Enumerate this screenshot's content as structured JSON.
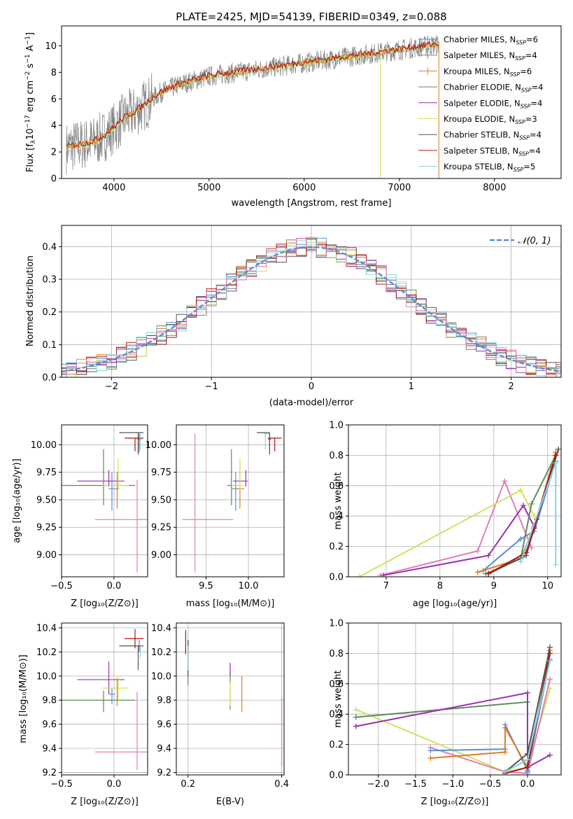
{
  "figure": {
    "title": "PLATE=2425, MJD=54139, FIBERID=0349, z=0.088"
  },
  "colors": {
    "chabrier_miles": "#5b8fd6",
    "salpeter_miles": "#7a7a7a",
    "kroupa_miles": "#e07b20",
    "chabrier_elodie": "#5e8a5e",
    "salpeter_elodie": "#9a2fb0",
    "kroupa_elodie": "#cfe35a",
    "chabrier_stelib": "#555555",
    "salpeter_stelib": "#b01515",
    "kroupa_stelib": "#80d8dc",
    "pink": "#e07fb8",
    "normal": "#5b8fd6"
  },
  "legend_models": [
    {
      "label": "Chabrier MILES, N",
      "sub": "SSP",
      "tail": "=6",
      "color": "#5b8fd6",
      "marker": "plus"
    },
    {
      "label": "Salpeter MILES, N",
      "sub": "SSP",
      "tail": "=4",
      "color": "#7a7a7a",
      "marker": "plus"
    },
    {
      "label": "Kroupa MILES, N",
      "sub": "SSP",
      "tail": "=6",
      "color": "#e07b20",
      "marker": "plus"
    },
    {
      "label": "Chabrier ELODIE, N",
      "sub": "SSP",
      "tail": "=4",
      "color": "#5e8a5e",
      "marker": "line"
    },
    {
      "label": "Salpeter ELODIE, N",
      "sub": "SSP",
      "tail": "=4",
      "color": "#9a2fb0",
      "marker": "line"
    },
    {
      "label": "Kroupa ELODIE, N",
      "sub": "SSP",
      "tail": "=3",
      "color": "#cfe35a",
      "marker": "line"
    },
    {
      "label": "Chabrier STELIB, N",
      "sub": "SSP",
      "tail": "=4",
      "color": "#555555",
      "marker": "line"
    },
    {
      "label": "Salpeter STELIB, N",
      "sub": "SSP",
      "tail": "=4",
      "color": "#b01515",
      "marker": "line"
    },
    {
      "label": "Kroupa STELIB, N",
      "sub": "SSP",
      "tail": "=5",
      "color": "#80d8dc",
      "marker": "line"
    }
  ],
  "chart_data": [
    {
      "id": "spectrum",
      "type": "line",
      "xlabel": "wavelength [Angstrom, rest frame]",
      "ylabel": "Flux [fλ10⁻¹⁷ erg cm⁻² s⁻¹ A⁻¹]",
      "xlim": [
        3450,
        8700
      ],
      "ylim": [
        0,
        11.5
      ],
      "xticks": [
        4000,
        5000,
        6000,
        7000,
        8000
      ],
      "yticks": [
        0,
        2,
        4,
        6,
        8,
        10
      ],
      "data_trend": {
        "x": [
          3500,
          3600,
          3700,
          3800,
          3900,
          4000,
          4100,
          4200,
          4300,
          4400,
          4500,
          4600,
          4700,
          4800,
          4900,
          5000,
          5200,
          5400,
          5600,
          5800,
          6000,
          6200,
          6400,
          6600,
          6800,
          7000,
          7200,
          7400
        ],
        "y": [
          2.3,
          2.5,
          2.6,
          2.8,
          3.2,
          3.8,
          4.5,
          4.9,
          5.4,
          6.0,
          6.5,
          6.8,
          7.1,
          7.3,
          7.5,
          7.7,
          7.9,
          8.1,
          8.3,
          8.5,
          8.7,
          8.9,
          9.1,
          9.3,
          9.5,
          9.7,
          9.9,
          10.1
        ]
      }
    },
    {
      "id": "residuals",
      "type": "line",
      "xlabel": "(data-model)/error",
      "ylabel": "Normed distribution",
      "xlim": [
        -2.5,
        2.5
      ],
      "ylim": [
        0,
        0.465
      ],
      "xticks": [
        -2,
        -1,
        0,
        1,
        2
      ],
      "yticks": [
        0.0,
        0.1,
        0.2,
        0.3,
        0.4
      ],
      "series": [
        {
          "name": "𝒩(0, 1)",
          "function": "normal",
          "mu": 0,
          "sigma": 1
        }
      ]
    },
    {
      "id": "age_vs_Z",
      "type": "scatter",
      "xlabel": "Z [log₁₀(Z/Z⊙)]",
      "ylabel": "age  [log₁₀(age/yr)]",
      "xlim": [
        -0.5,
        0.32
      ],
      "ylim": [
        8.8,
        10.18
      ],
      "xticks": [
        -0.5,
        0.0
      ],
      "yticks": [
        9.0,
        9.25,
        9.5,
        9.75,
        10.0
      ],
      "points": [
        {
          "x": -0.02,
          "y": 9.6,
          "xerr": [
            0.03,
            0.03
          ],
          "yerr": [
            0.2,
            0.15
          ],
          "color": "#5b8fd6"
        },
        {
          "x": 0.24,
          "y": 10.05,
          "xerr": [
            0.02,
            0.02
          ],
          "yerr": [
            0.12,
            0.05
          ],
          "color": "#7a7a7a"
        },
        {
          "x": 0.03,
          "y": 9.6,
          "xerr": [
            0.02,
            0.02
          ],
          "yerr": [
            0.18,
            0.15
          ],
          "color": "#e07b20"
        },
        {
          "x": -0.1,
          "y": 9.63,
          "xerr": [
            0.4,
            0.3
          ],
          "yerr": [
            0.18,
            0.33
          ],
          "color": "#5e8a5e"
        },
        {
          "x": -0.05,
          "y": 9.67,
          "xerr": [
            0.3,
            0.15
          ],
          "yerr": [
            0.05,
            0.1
          ],
          "color": "#9a2fb0"
        },
        {
          "x": 0.04,
          "y": 9.63,
          "xerr": [
            0.15,
            0.1
          ],
          "yerr": [
            0.04,
            0.25
          ],
          "color": "#cfe35a"
        },
        {
          "x": 0.23,
          "y": 10.11,
          "xerr": [
            0.18,
            0.05
          ],
          "yerr": [
            0.2,
            0.0
          ],
          "color": "#555555"
        },
        {
          "x": 0.2,
          "y": 10.06,
          "xerr": [
            0.1,
            0.08
          ],
          "yerr": [
            0.12,
            0.0
          ],
          "color": "#b01515"
        },
        {
          "x": 0.25,
          "y": 10.1,
          "xerr": [
            0.01,
            0.0
          ],
          "yerr": [
            0.14,
            0.0
          ],
          "color": "#80d8dc"
        },
        {
          "x": 0.22,
          "y": 9.32,
          "xerr": [
            0.4,
            0.1
          ],
          "yerr": [
            0.48,
            0.36
          ],
          "color": "#e07fb8"
        }
      ]
    },
    {
      "id": "age_vs_mass",
      "type": "scatter",
      "xlabel": "mass [log₁₀(M/M⊙)]",
      "ylabel": "",
      "xlim": [
        9.15,
        10.42
      ],
      "ylim": [
        8.8,
        10.18
      ],
      "xticks": [
        9.5,
        10.0
      ],
      "yticks": [
        9.0,
        9.25,
        9.5,
        9.75,
        10.0
      ],
      "points": [
        {
          "x": 9.85,
          "y": 9.6,
          "xerr": [
            0.05,
            0.05
          ],
          "yerr": [
            0.2,
            0.15
          ],
          "color": "#5b8fd6"
        },
        {
          "x": 10.25,
          "y": 10.05,
          "xerr": [
            0.02,
            0.02
          ],
          "yerr": [
            0.12,
            0.05
          ],
          "color": "#7a7a7a"
        },
        {
          "x": 9.9,
          "y": 9.6,
          "xerr": [
            0.05,
            0.05
          ],
          "yerr": [
            0.18,
            0.15
          ],
          "color": "#e07b20"
        },
        {
          "x": 9.8,
          "y": 9.63,
          "xerr": [
            0.05,
            0.08
          ],
          "yerr": [
            0.18,
            0.33
          ],
          "color": "#5e8a5e"
        },
        {
          "x": 9.97,
          "y": 9.67,
          "xerr": [
            0.15,
            0.02
          ],
          "yerr": [
            0.05,
            0.1
          ],
          "color": "#9a2fb0"
        },
        {
          "x": 9.9,
          "y": 9.63,
          "xerr": [
            0.1,
            0.05
          ],
          "yerr": [
            0.04,
            0.25
          ],
          "color": "#cfe35a"
        },
        {
          "x": 10.25,
          "y": 10.11,
          "xerr": [
            0.15,
            0.0
          ],
          "yerr": [
            0.2,
            0.0
          ],
          "color": "#555555"
        },
        {
          "x": 10.31,
          "y": 10.06,
          "xerr": [
            0.08,
            0.08
          ],
          "yerr": [
            0.12,
            0.0
          ],
          "color": "#b01515"
        },
        {
          "x": 10.2,
          "y": 10.1,
          "xerr": [
            0.02,
            0.05
          ],
          "yerr": [
            0.14,
            0.0
          ],
          "color": "#80d8dc"
        },
        {
          "x": 9.37,
          "y": 9.32,
          "xerr": [
            0.15,
            0.45
          ],
          "yerr": [
            0.48,
            0.78
          ],
          "color": "#e07fb8"
        }
      ]
    },
    {
      "id": "weight_vs_age",
      "type": "line",
      "xlabel": "age  [log₁₀(age/yr)]",
      "ylabel": "mass weight",
      "xlim": [
        6.3,
        10.25
      ],
      "ylim": [
        0,
        1.0
      ],
      "xticks": [
        7,
        8,
        9,
        10
      ],
      "yticks": [
        0.0,
        0.2,
        0.4,
        0.6,
        0.8,
        1.0
      ],
      "series": [
        {
          "color": "#e07fb8",
          "x": [
            6.9,
            8.7,
            9.2,
            9.7
          ],
          "y": [
            0.01,
            0.17,
            0.63,
            0.19
          ]
        },
        {
          "color": "#cfe35a",
          "x": [
            6.5,
            9.5,
            9.75
          ],
          "y": [
            0.0,
            0.57,
            0.4
          ]
        },
        {
          "color": "#5b8fd6",
          "x": [
            8.8,
            9.5,
            9.75,
            10.15
          ],
          "y": [
            0.04,
            0.25,
            0.3,
            0.76
          ]
        },
        {
          "color": "#e07b20",
          "x": [
            8.7,
            9.5,
            9.75,
            10.15
          ],
          "y": [
            0.03,
            0.12,
            0.33,
            0.82
          ]
        },
        {
          "color": "#9a2fb0",
          "x": [
            6.95,
            8.9,
            9.55,
            9.75,
            10.15
          ],
          "y": [
            0.01,
            0.14,
            0.47,
            0.33,
            0.8
          ]
        },
        {
          "color": "#5e8a5e",
          "x": [
            8.85,
            9.5,
            9.7,
            10.15
          ],
          "y": [
            0.02,
            0.12,
            0.48,
            0.8
          ]
        },
        {
          "color": "#555555",
          "x": [
            8.9,
            9.6,
            9.8,
            10.2
          ],
          "y": [
            0.02,
            0.14,
            0.38,
            0.84
          ]
        },
        {
          "color": "#b01515",
          "x": [
            8.9,
            9.6,
            9.75,
            10.15
          ],
          "y": [
            0.02,
            0.16,
            0.32,
            0.8
          ]
        },
        {
          "color": "#80d8dc",
          "x": [
            9.5,
            10.15,
            10.15
          ],
          "y": [
            0.1,
            0.75,
            0.08
          ]
        }
      ]
    },
    {
      "id": "mass_vs_Z",
      "type": "scatter",
      "xlabel": "Z [log₁₀(Z/Z⊙)]",
      "ylabel": "mass [log₁₀(M/M⊙)]",
      "xlim": [
        -0.5,
        0.32
      ],
      "ylim": [
        9.18,
        10.44
      ],
      "xticks": [
        -0.5,
        0.0
      ],
      "yticks": [
        9.2,
        9.4,
        9.6,
        9.8,
        10.0,
        10.2,
        10.4
      ],
      "points": [
        {
          "x": -0.02,
          "y": 9.85,
          "xerr": [
            0.03,
            0.03
          ],
          "yerr": [
            0.08,
            0.05
          ],
          "color": "#5b8fd6"
        },
        {
          "x": 0.24,
          "y": 10.25,
          "xerr": [
            0.02,
            0.02
          ],
          "yerr": [
            0.05,
            0.05
          ],
          "color": "#7a7a7a"
        },
        {
          "x": 0.03,
          "y": 9.9,
          "xerr": [
            0.02,
            0.02
          ],
          "yerr": [
            0.15,
            0.08
          ],
          "color": "#e07b20"
        },
        {
          "x": -0.1,
          "y": 9.8,
          "xerr": [
            0.4,
            0.3
          ],
          "yerr": [
            0.1,
            0.08
          ],
          "color": "#5e8a5e"
        },
        {
          "x": -0.05,
          "y": 9.97,
          "xerr": [
            0.3,
            0.15
          ],
          "yerr": [
            0.12,
            0.15
          ],
          "color": "#9a2fb0"
        },
        {
          "x": 0.04,
          "y": 9.9,
          "xerr": [
            0.15,
            0.1
          ],
          "yerr": [
            0.1,
            0.1
          ],
          "color": "#cfe35a"
        },
        {
          "x": 0.23,
          "y": 10.25,
          "xerr": [
            0.18,
            0.05
          ],
          "yerr": [
            0.2,
            0.0
          ],
          "color": "#555555"
        },
        {
          "x": 0.2,
          "y": 10.31,
          "xerr": [
            0.1,
            0.08
          ],
          "yerr": [
            0.08,
            0.08
          ],
          "color": "#b01515"
        },
        {
          "x": 0.25,
          "y": 10.2,
          "xerr": [
            0.01,
            0.0
          ],
          "yerr": [
            0.05,
            0.05
          ],
          "color": "#80d8dc"
        },
        {
          "x": 0.22,
          "y": 9.37,
          "xerr": [
            0.4,
            0.1
          ],
          "yerr": [
            0.15,
            0.5
          ],
          "color": "#e07fb8"
        }
      ]
    },
    {
      "id": "mass_vs_ebv",
      "type": "scatter",
      "xlabel": "E(B-V)",
      "ylabel": "",
      "xlim": [
        0.175,
        0.405
      ],
      "ylim": [
        9.18,
        10.44
      ],
      "xticks": [
        0.2,
        0.4
      ],
      "yticks": [
        9.2,
        9.4,
        9.6,
        9.8,
        10.0,
        10.2,
        10.4
      ],
      "points": [
        {
          "x": 0.2,
          "y": 10.2,
          "yerr": [
            0.05,
            0.1
          ],
          "color": "#5b8fd6"
        },
        {
          "x": 0.2,
          "y": 10.1,
          "yerr": [
            0.18,
            0.2
          ],
          "color": "#7a7a7a"
        },
        {
          "x": 0.315,
          "y": 9.85,
          "yerr": [
            0.15,
            0.15
          ],
          "color": "#e07b20"
        },
        {
          "x": 0.29,
          "y": 9.9,
          "yerr": [
            0.18,
            0.15
          ],
          "color": "#5e8a5e"
        },
        {
          "x": 0.29,
          "y": 10.05,
          "yerr": [
            0.05,
            0.06
          ],
          "color": "#9a2fb0"
        },
        {
          "x": 0.29,
          "y": 9.85,
          "yerr": [
            0.1,
            0.1
          ],
          "color": "#cfe35a"
        },
        {
          "x": 0.2,
          "y": 10.1,
          "yerr": [
            0.1,
            0.2
          ],
          "color": "#555555"
        },
        {
          "x": 0.195,
          "y": 10.3,
          "yerr": [
            0.12,
            0.08
          ],
          "color": "#b01515"
        },
        {
          "x": 0.2,
          "y": 10.15,
          "yerr": [
            0.1,
            0.1
          ],
          "color": "#80d8dc"
        },
        {
          "x": 0.4,
          "y": 9.55,
          "yerr": [
            0.3,
            0.27
          ],
          "color": "#e07fb8"
        }
      ]
    },
    {
      "id": "weight_vs_Z",
      "type": "line",
      "xlabel": "Z [log₁₀(Z/Z⊙)]",
      "ylabel": "mass weight",
      "xlim": [
        -2.4,
        0.45
      ],
      "ylim": [
        0,
        1.0
      ],
      "xticks": [
        -2.0,
        -1.5,
        -1.0,
        -0.5,
        0.0
      ],
      "yticks": [
        0.0,
        0.2,
        0.4,
        0.6,
        0.8,
        1.0
      ],
      "series": [
        {
          "color": "#cfe35a",
          "x": [
            -2.3,
            -0.3,
            0.0,
            0.3
          ],
          "y": [
            0.43,
            0.02,
            0.05,
            0.57
          ]
        },
        {
          "color": "#5e8a5e",
          "x": [
            -2.3,
            0.0,
            0.0,
            0.3
          ],
          "y": [
            0.38,
            0.48,
            0.02,
            0.8
          ]
        },
        {
          "color": "#9a2fb0",
          "x": [
            -2.3,
            0.0,
            0.0,
            0.3
          ],
          "y": [
            0.32,
            0.54,
            0.05,
            0.13
          ]
        },
        {
          "color": "#e07fb8",
          "x": [
            -1.3,
            -0.3,
            0.0,
            0.3
          ],
          "y": [
            0.18,
            0.02,
            0.01,
            0.63
          ]
        },
        {
          "color": "#5b8fd6",
          "x": [
            -1.3,
            -0.3,
            -0.3,
            0.0,
            0.3
          ],
          "y": [
            0.16,
            0.17,
            0.33,
            0.03,
            0.76
          ]
        },
        {
          "color": "#e07b20",
          "x": [
            -1.3,
            -0.3,
            -0.3,
            0.0,
            0.3
          ],
          "y": [
            0.11,
            0.15,
            0.31,
            0.05,
            0.82
          ]
        },
        {
          "color": "#555555",
          "x": [
            -0.3,
            0.0,
            0.3
          ],
          "y": [
            0.02,
            0.14,
            0.84
          ]
        },
        {
          "color": "#b01515",
          "x": [
            -0.3,
            0.0,
            0.3
          ],
          "y": [
            0.01,
            0.05,
            0.8
          ]
        },
        {
          "color": "#80d8dc",
          "x": [
            -0.3,
            0.0,
            0.3
          ],
          "y": [
            0.02,
            0.1,
            0.75
          ]
        }
      ]
    }
  ]
}
